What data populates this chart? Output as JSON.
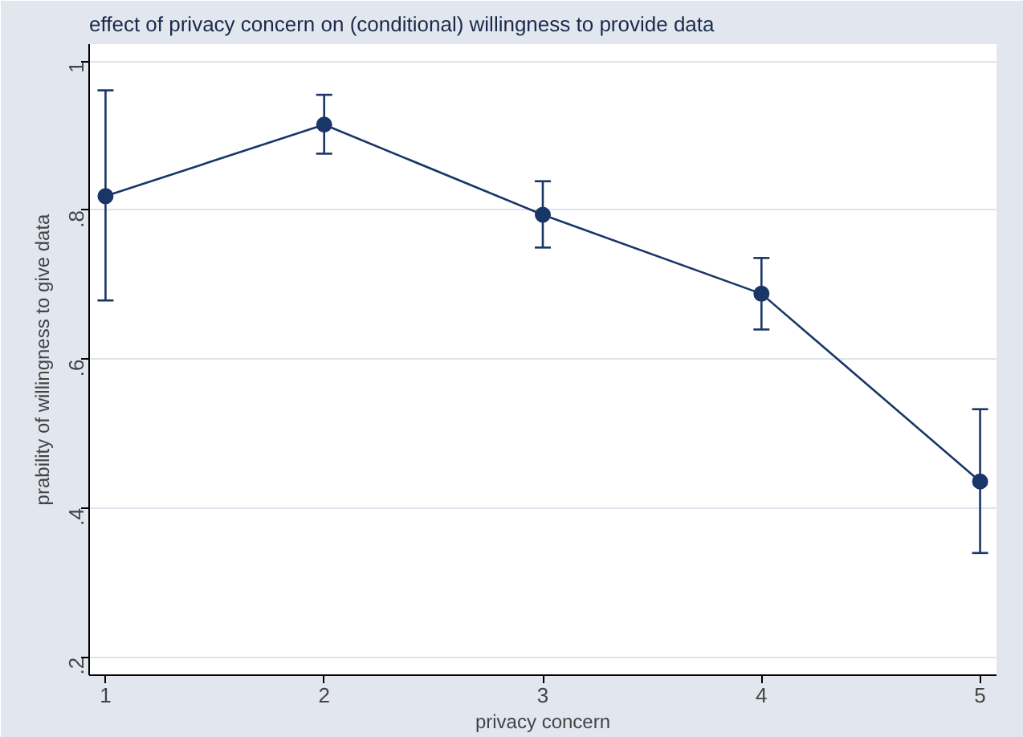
{
  "chart_data": {
    "type": "line",
    "title": "effect of privacy concern on (conditional) willingness to provide data",
    "xlabel": "privacy concern",
    "ylabel": "prability of willingness to give data",
    "x": [
      1,
      2,
      3,
      4,
      5
    ],
    "series": [
      {
        "color": "#1a3668",
        "values": [
          0.819,
          0.915,
          0.794,
          0.688,
          0.436
        ],
        "errors": [
          [
            0.679,
            0.961
          ],
          [
            0.876,
            0.955
          ],
          [
            0.75,
            0.839
          ],
          [
            0.64,
            0.736
          ],
          [
            0.34,
            0.533
          ]
        ]
      }
    ],
    "xlim": [
      0.925,
      5.075
    ],
    "ylim": [
      0.176,
      1.023
    ],
    "xticks": [
      1,
      2,
      3,
      4,
      5
    ],
    "yticks": [
      {
        "value": 0.2,
        "label": ".2"
      },
      {
        "value": 0.4,
        "label": ".4"
      },
      {
        "value": 0.6,
        "label": ".6"
      },
      {
        "value": 0.8,
        "label": ".8"
      },
      {
        "value": 1,
        "label": "1"
      }
    ],
    "grid": "y",
    "marker": "circle",
    "line_style": "solid"
  }
}
